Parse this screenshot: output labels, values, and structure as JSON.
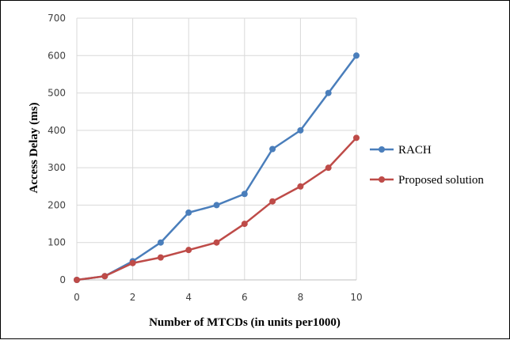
{
  "chart_data": {
    "type": "line",
    "title": "",
    "xlabel": "Number of MTCDs (in units per1000)",
    "ylabel": "Access Delay (ms)",
    "x": [
      0,
      1,
      2,
      3,
      4,
      5,
      6,
      7,
      8,
      9,
      10
    ],
    "xlim": [
      0,
      10
    ],
    "ylim": [
      0,
      700
    ],
    "x_ticks": [
      "0",
      "2",
      "4",
      "6",
      "8",
      "10"
    ],
    "y_ticks": [
      "0",
      "100",
      "200",
      "300",
      "400",
      "500",
      "600",
      "700"
    ],
    "grid": true,
    "legend_position": "right",
    "series": [
      {
        "name": "RACH",
        "color": "#4a7ebb",
        "values": [
          0,
          10,
          50,
          100,
          180,
          200,
          230,
          350,
          400,
          500,
          600
        ]
      },
      {
        "name": "Proposed solution",
        "color": "#be4b48",
        "values": [
          0,
          10,
          45,
          60,
          80,
          100,
          150,
          210,
          250,
          300,
          380
        ]
      }
    ]
  }
}
